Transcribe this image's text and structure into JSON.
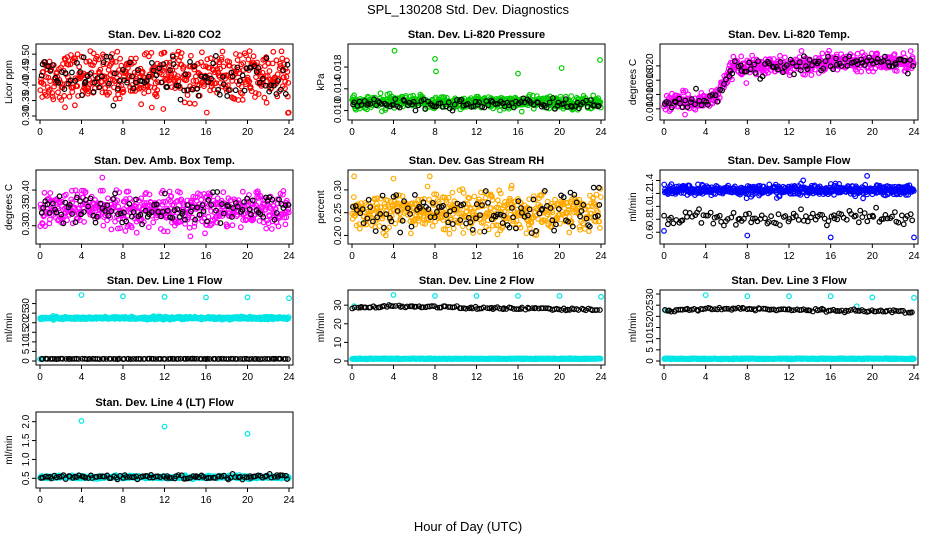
{
  "figure_title": "SPL_130208  Std. Dev. Diagnostics",
  "shared_xlabel": "Hour of Day (UTC)",
  "chart_data": [
    {
      "type": "scatter",
      "title": "Stan. Dev. Li-820 CO2",
      "ylabel": "Licor ppm",
      "xlim": [
        0,
        24
      ],
      "ylim": [
        0.3,
        0.52
      ],
      "xticks": [
        0,
        4,
        8,
        12,
        16,
        20,
        24
      ],
      "yticks": [
        0.3,
        0.35,
        0.4,
        0.45,
        0.5
      ],
      "ytick_labels": [
        "0.30",
        "0.35",
        "0.40",
        "0.45",
        "0.50"
      ],
      "series": [
        {
          "color": "#ff0000",
          "dense": true,
          "mean": 0.425,
          "spread": 0.04,
          "min": 0.31,
          "max": 0.51,
          "outliers": [
            [
              20.2,
              0.51
            ],
            [
              23.9,
              0.31
            ]
          ]
        },
        {
          "color": "#000000",
          "dense": false,
          "mean": 0.42,
          "spread": 0.035,
          "min": 0.33,
          "max": 0.5,
          "outliers": [
            [
              4.2,
              0.49
            ]
          ]
        }
      ]
    },
    {
      "type": "scatter",
      "title": "Stan. Dev. Li-820 Pressure",
      "ylabel": "kPa",
      "xlim": [
        0,
        24
      ],
      "ylim": [
        0.009,
        0.0215
      ],
      "xticks": [
        0,
        4,
        8,
        12,
        16,
        20,
        24
      ],
      "yticks": [
        0.01,
        0.014,
        0.018
      ],
      "ytick_labels": [
        "0.010",
        "0.014",
        "0.018"
      ],
      "series": [
        {
          "color": "#00cc00",
          "dense": true,
          "mean": 0.0115,
          "spread": 0.0006,
          "min": 0.0098,
          "max": 0.0135,
          "outliers": [
            [
              4.1,
              0.021
            ],
            [
              8.0,
              0.0195
            ],
            [
              8.1,
              0.0172
            ],
            [
              16.0,
              0.0168
            ],
            [
              20.2,
              0.0178
            ],
            [
              23.9,
              0.0193
            ],
            [
              0.2,
              0.0128
            ]
          ]
        },
        {
          "color": "#000000",
          "dense": false,
          "mean": 0.0112,
          "spread": 0.0005,
          "min": 0.0099,
          "max": 0.0128,
          "outliers": []
        }
      ]
    },
    {
      "type": "scatter",
      "title": "Stan. Dev. Li-820 Temp.",
      "ylabel": "degrees C",
      "xlim": [
        0,
        24
      ],
      "ylim": [
        0.013,
        0.0225
      ],
      "xticks": [
        0,
        4,
        8,
        12,
        16,
        20,
        24
      ],
      "yticks": [
        0.014,
        0.016,
        0.018,
        0.02
      ],
      "ytick_labels": [
        "0.014",
        "0.016",
        "0.018",
        "0.020"
      ],
      "series": [
        {
          "color": "#ff00ff",
          "dense": true,
          "trend": [
            [
              0,
              0.0148
            ],
            [
              4,
              0.0152
            ],
            [
              5,
              0.0158
            ],
            [
              6.5,
              0.0198
            ],
            [
              12,
              0.02
            ],
            [
              16,
              0.0205
            ],
            [
              20,
              0.0208
            ],
            [
              24,
              0.0205
            ]
          ],
          "spread": 0.0006,
          "min": 0.0132,
          "max": 0.0222,
          "outliers": []
        },
        {
          "color": "#000000",
          "dense": false,
          "trend": [
            [
              0,
              0.0148
            ],
            [
              4,
              0.0152
            ],
            [
              5,
              0.0158
            ],
            [
              6.5,
              0.0196
            ],
            [
              12,
              0.0199
            ],
            [
              16,
              0.0203
            ],
            [
              20,
              0.0207
            ],
            [
              24,
              0.0204
            ]
          ],
          "spread": 0.0005,
          "min": 0.0135,
          "max": 0.022,
          "outliers": []
        }
      ]
    },
    {
      "type": "scatter",
      "title": "Stan. Dev. Amb. Box Temp.",
      "ylabel": "degrees C",
      "xlim": [
        0,
        24
      ],
      "ylim": [
        0.26,
        0.445
      ],
      "xticks": [
        0,
        4,
        8,
        12,
        16,
        20,
        24
      ],
      "yticks": [
        0.3,
        0.35,
        0.4
      ],
      "ytick_labels": [
        "0.30",
        "0.35",
        "0.40"
      ],
      "series": [
        {
          "color": "#ff00ff",
          "dense": true,
          "mean": 0.345,
          "spread": 0.025,
          "min": 0.275,
          "max": 0.4,
          "outliers": [
            [
              6.0,
              0.435
            ],
            [
              14.5,
              0.27
            ]
          ]
        },
        {
          "color": "#000000",
          "dense": false,
          "mean": 0.345,
          "spread": 0.022,
          "min": 0.29,
          "max": 0.395,
          "outliers": []
        }
      ]
    },
    {
      "type": "scatter",
      "title": "Stan. Dev. Gas Stream RH",
      "ylabel": "percent",
      "xlim": [
        0,
        24
      ],
      "ylim": [
        0.19,
        0.335
      ],
      "xticks": [
        0,
        4,
        8,
        12,
        16,
        20,
        24
      ],
      "yticks": [
        0.2,
        0.25,
        0.3
      ],
      "ytick_labels": [
        "0.20",
        "0.25",
        "0.30"
      ],
      "series": [
        {
          "color": "#ffaa00",
          "dense": true,
          "mean": 0.253,
          "spread": 0.02,
          "min": 0.2,
          "max": 0.33,
          "outliers": [
            [
              0.2,
              0.33
            ],
            [
              4.0,
              0.325
            ],
            [
              7.5,
              0.33
            ]
          ]
        },
        {
          "color": "#000000",
          "dense": false,
          "mean": 0.25,
          "spread": 0.02,
          "min": 0.205,
          "max": 0.31,
          "outliers": [
            [
              23.8,
              0.305
            ]
          ]
        }
      ]
    },
    {
      "type": "scatter",
      "title": "Stan. Dev. Sample Flow",
      "ylabel": "ml/min",
      "xlim": [
        0,
        24
      ],
      "ylim": [
        0.48,
        1.5
      ],
      "xticks": [
        0,
        4,
        8,
        12,
        16,
        20,
        24
      ],
      "yticks": [
        0.6,
        0.8,
        1.0,
        1.2,
        1.4
      ],
      "ytick_labels": [
        "0.6",
        "0.8",
        "1.0",
        "1.2",
        "1.4"
      ],
      "series": [
        {
          "color": "#0000ff",
          "dense": true,
          "mean": 1.25,
          "spread": 0.04,
          "min": 1.08,
          "max": 1.45,
          "outliers": [
            [
              0.0,
              0.62
            ],
            [
              8.0,
              0.55
            ],
            [
              16.0,
              0.52
            ],
            [
              24.0,
              0.52
            ],
            [
              19.5,
              1.47
            ]
          ]
        },
        {
          "color": "#000000",
          "dense": false,
          "mean": 0.83,
          "spread": 0.06,
          "min": 0.7,
          "max": 1.0,
          "outliers": []
        }
      ]
    },
    {
      "type": "scatter",
      "title": "Stan. Dev. Line 1 Flow",
      "ylabel": "ml/min",
      "xlim": [
        0,
        24
      ],
      "ylim": [
        0,
        35
      ],
      "xticks": [
        0,
        4,
        8,
        12,
        16,
        20,
        24
      ],
      "yticks": [
        0,
        5,
        10,
        15,
        20,
        25,
        30
      ],
      "ytick_labels": [
        "0",
        "5",
        "10",
        "15",
        "20",
        "25",
        "30"
      ],
      "series": [
        {
          "color": "#00e5e5",
          "dense": true,
          "mean": 22.4,
          "spread": 0.35,
          "min": 21.2,
          "max": 23.6,
          "outliers": [
            [
              4.0,
              34.5
            ],
            [
              8.0,
              33.8
            ],
            [
              12.0,
              33.5
            ],
            [
              16.0,
              33.2
            ],
            [
              20.0,
              33.3
            ],
            [
              24.0,
              32.8
            ],
            [
              0.3,
              1.0
            ],
            [
              0.0,
              1.0
            ]
          ]
        },
        {
          "color": "#000000",
          "dense": false,
          "mean": 1.1,
          "spread": 0.05,
          "min": 0.9,
          "max": 1.3,
          "outliers": []
        }
      ]
    },
    {
      "type": "scatter",
      "title": "Stan. Dev. Line 2 Flow",
      "ylabel": "ml/min",
      "xlim": [
        0,
        24
      ],
      "ylim": [
        0,
        36
      ],
      "xticks": [
        0,
        4,
        8,
        12,
        16,
        20,
        24
      ],
      "yticks": [
        0,
        10,
        20,
        30
      ],
      "ytick_labels": [
        "0",
        "10",
        "20",
        "30"
      ],
      "series": [
        {
          "color": "#00e5e5",
          "dense": true,
          "mean": 1.2,
          "spread": 0.1,
          "min": 0.9,
          "max": 1.5,
          "outliers": [
            [
              4.0,
              35.5
            ],
            [
              8.0,
              35.0
            ],
            [
              12.0,
              35.0
            ],
            [
              16.0,
              35.0
            ],
            [
              20.0,
              35.0
            ],
            [
              24.0,
              34.5
            ],
            [
              0.2,
              29.5
            ]
          ]
        },
        {
          "color": "#000000",
          "dense": false,
          "trend": [
            [
              0,
              28.5
            ],
            [
              4,
              29.5
            ],
            [
              12,
              28.5
            ],
            [
              24,
              27.5
            ]
          ],
          "spread": 0.35,
          "min": 26.5,
          "max": 30.5,
          "outliers": []
        }
      ]
    },
    {
      "type": "scatter",
      "title": "Stan. Dev. Line 3 Flow",
      "ylabel": "ml/min",
      "xlim": [
        0,
        24
      ],
      "ylim": [
        0,
        30
      ],
      "xticks": [
        0,
        4,
        8,
        12,
        16,
        20,
        24
      ],
      "yticks": [
        0,
        5,
        10,
        15,
        20,
        25,
        30
      ],
      "ytick_labels": [
        "0",
        "5",
        "10",
        "15",
        "20",
        "25",
        "30"
      ],
      "series": [
        {
          "color": "#00e5e5",
          "dense": true,
          "mean": 1.0,
          "spread": 0.1,
          "min": 0.7,
          "max": 1.3,
          "outliers": [
            [
              4.0,
              29.5
            ],
            [
              8.0,
              29.0
            ],
            [
              12.0,
              29.0
            ],
            [
              16.0,
              29.0
            ],
            [
              18.5,
              24.5
            ],
            [
              20.0,
              28.5
            ],
            [
              24.0,
              28.3
            ],
            [
              0.2,
              22.5
            ]
          ]
        },
        {
          "color": "#000000",
          "dense": false,
          "trend": [
            [
              0,
              22.5
            ],
            [
              4,
              23.5
            ],
            [
              12,
              23.0
            ],
            [
              24,
              22.0
            ]
          ],
          "spread": 0.3,
          "min": 21.3,
          "max": 24.5,
          "outliers": []
        }
      ]
    },
    {
      "type": "scatter",
      "title": "Stan. Dev. Line 4 (LT) Flow",
      "ylabel": "ml/min",
      "xlim": [
        0,
        24
      ],
      "ylim": [
        0.35,
        2.15
      ],
      "xticks": [
        0,
        4,
        8,
        12,
        16,
        20,
        24
      ],
      "yticks": [
        0.5,
        1.0,
        1.5,
        2.0
      ],
      "ytick_labels": [
        "0.5",
        "1.0",
        "1.5",
        "2.0"
      ],
      "series": [
        {
          "color": "#00e5e5",
          "dense": true,
          "mean": 0.53,
          "spread": 0.02,
          "min": 0.47,
          "max": 0.6,
          "outliers": [
            [
              4.0,
              2.02
            ],
            [
              12.0,
              1.87
            ],
            [
              20.0,
              1.68
            ]
          ]
        },
        {
          "color": "#000000",
          "dense": false,
          "mean": 0.53,
          "spread": 0.03,
          "min": 0.47,
          "max": 0.62,
          "outliers": []
        }
      ]
    }
  ]
}
